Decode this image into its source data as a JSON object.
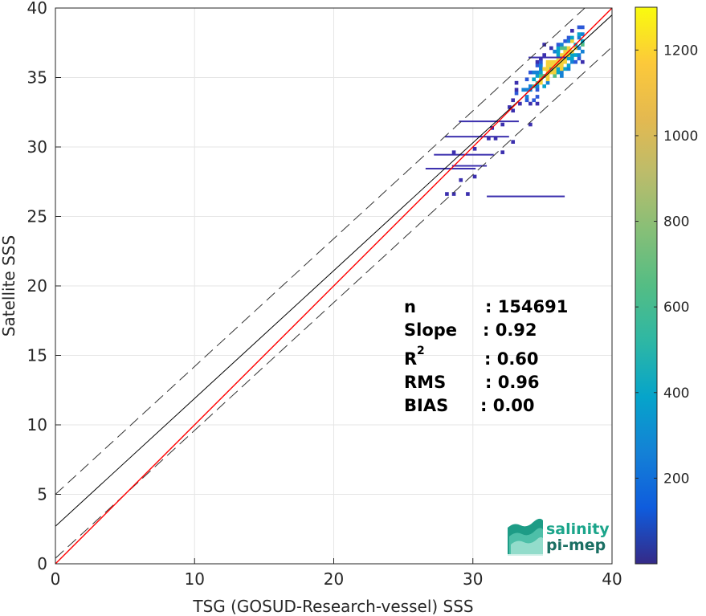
{
  "chart_data": {
    "type": "heatmap",
    "xlabel": "TSG (GOSUD-Research-vessel) SSS",
    "ylabel": "Satellite SSS",
    "xlim": [
      0,
      40
    ],
    "ylim": [
      0,
      40
    ],
    "xticks": [
      0,
      10,
      20,
      30,
      40
    ],
    "yticks": [
      0,
      5,
      10,
      15,
      20,
      25,
      30,
      35,
      40
    ],
    "grid": true,
    "colorbar": {
      "min": 0,
      "max": 1300,
      "ticks": [
        200,
        400,
        600,
        800,
        1000,
        1200
      ],
      "colormap": "parula"
    },
    "lines": {
      "identity": {
        "slope": 1,
        "intercept": 0,
        "color": "#ff0000"
      },
      "fit": {
        "slope": 0.92,
        "intercept": 2.7,
        "color": "#000000"
      },
      "upper_bound": {
        "slope": 0.92,
        "intercept": 5.0,
        "style": "dashed"
      },
      "lower_bound": {
        "slope": 0.92,
        "intercept": 0.4,
        "style": "dashed"
      }
    },
    "density_core": {
      "x": 36,
      "y": 36
    },
    "density_extent": {
      "x": [
        28,
        38
      ],
      "y": [
        26.5,
        39.5
      ]
    },
    "stats": [
      {
        "label": "n",
        "value": ": 154691"
      },
      {
        "label": "Slope",
        "value": ": 0.92"
      },
      {
        "label": "R",
        "sup": "2",
        "value": ": 0.60"
      },
      {
        "label": "RMS",
        "value": ": 0.96"
      },
      {
        "label": "BIAS",
        "value": ": 0.00"
      }
    ]
  },
  "logo": {
    "line1": "salinity",
    "line2": "pi-mep"
  },
  "colors": {
    "axis": "#262626",
    "grid": "#e6e6e6",
    "logo": "#1ca58b"
  }
}
